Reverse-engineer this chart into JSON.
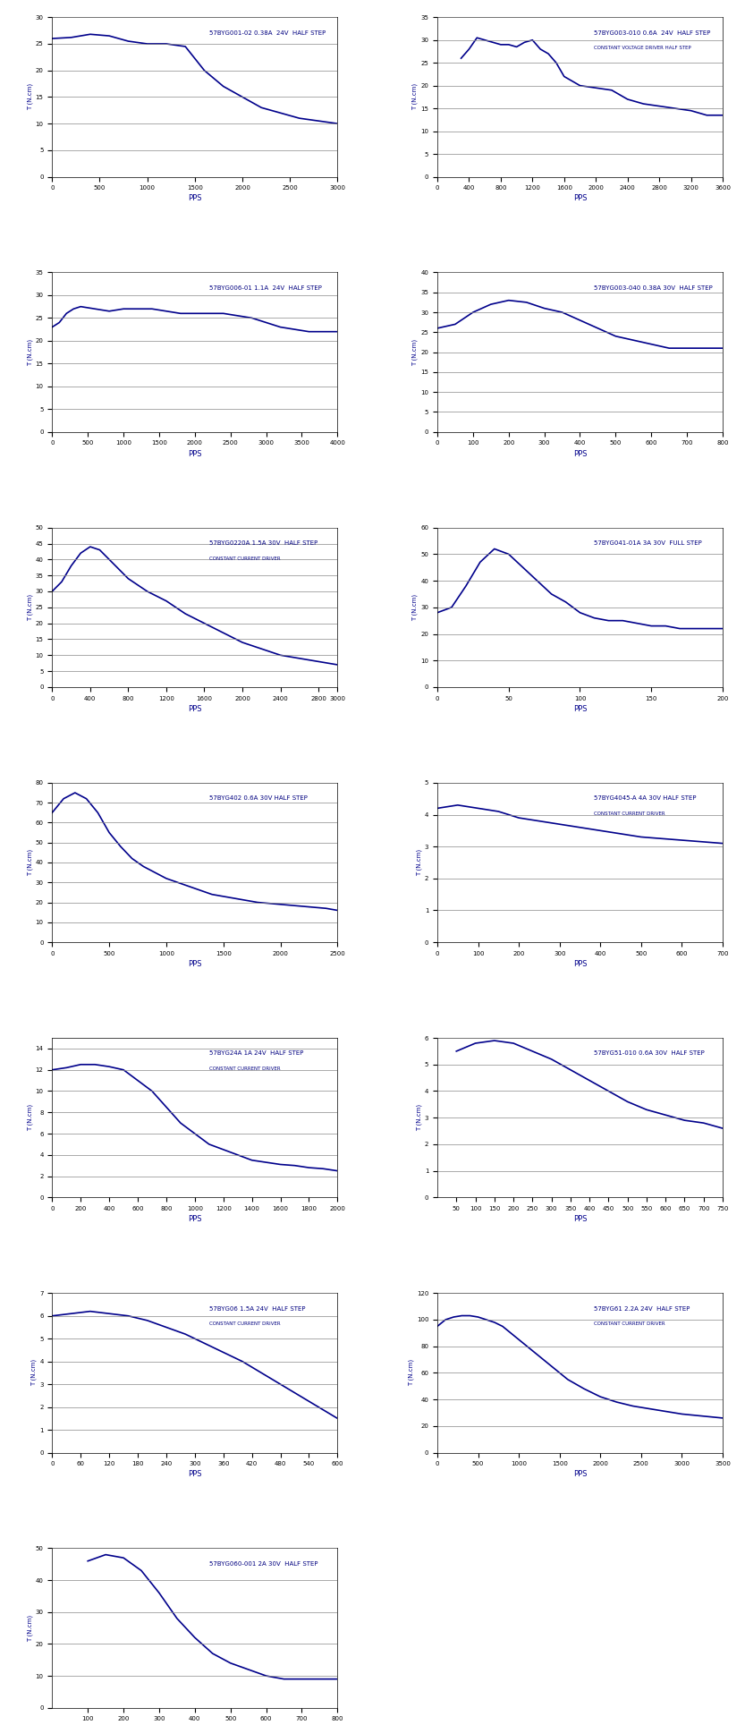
{
  "charts": [
    {
      "title": "57BYG001-02 0.38A  24V  HALF STEP",
      "subtitle": "",
      "ylim": [
        0,
        30
      ],
      "yticks": [
        0,
        5,
        10,
        15,
        20,
        25,
        30
      ],
      "xlim": [
        0,
        3000
      ],
      "xticks": [
        0,
        500,
        1000,
        1500,
        2000,
        2500,
        3000
      ],
      "curve": [
        [
          0,
          26
        ],
        [
          200,
          26.2
        ],
        [
          400,
          26.8
        ],
        [
          600,
          26.5
        ],
        [
          800,
          25.5
        ],
        [
          1000,
          25
        ],
        [
          1200,
          25
        ],
        [
          1400,
          24.5
        ],
        [
          1600,
          20
        ],
        [
          1800,
          17
        ],
        [
          2000,
          15
        ],
        [
          2200,
          13
        ],
        [
          2400,
          12
        ],
        [
          2600,
          11
        ],
        [
          2800,
          10.5
        ],
        [
          3000,
          10
        ]
      ]
    },
    {
      "title": "57BYG003-010 0.6A  24V  HALF STEP",
      "subtitle": "CONSTANT VOLTAGE DRIVER HALF STEP",
      "ylim": [
        0,
        35
      ],
      "yticks": [
        0,
        5,
        10,
        15,
        20,
        25,
        30,
        35
      ],
      "xlim": [
        0,
        3600
      ],
      "xticks": [
        0,
        400,
        800,
        1200,
        1600,
        2000,
        2400,
        2800,
        3200,
        3600
      ],
      "curve": [
        [
          300,
          26
        ],
        [
          400,
          28
        ],
        [
          500,
          30.5
        ],
        [
          600,
          30
        ],
        [
          700,
          29.5
        ],
        [
          800,
          29
        ],
        [
          900,
          29
        ],
        [
          1000,
          28.5
        ],
        [
          1100,
          29.5
        ],
        [
          1200,
          30
        ],
        [
          1300,
          28
        ],
        [
          1400,
          27
        ],
        [
          1500,
          25
        ],
        [
          1600,
          22
        ],
        [
          1800,
          20
        ],
        [
          2000,
          19.5
        ],
        [
          2200,
          19
        ],
        [
          2400,
          17
        ],
        [
          2600,
          16
        ],
        [
          2800,
          15.5
        ],
        [
          3000,
          15
        ],
        [
          3200,
          14.5
        ],
        [
          3400,
          13.5
        ],
        [
          3600,
          13.5
        ]
      ]
    },
    {
      "title": "57BYG006-01 1.1A  24V  HALF STEP",
      "subtitle": "",
      "ylim": [
        0,
        35
      ],
      "yticks": [
        0,
        5,
        10,
        15,
        20,
        25,
        30,
        35
      ],
      "xlim": [
        0,
        4000
      ],
      "xticks": [
        0,
        500,
        1000,
        1500,
        2000,
        2500,
        3000,
        3500,
        4000
      ],
      "curve": [
        [
          0,
          23
        ],
        [
          100,
          24
        ],
        [
          200,
          26
        ],
        [
          300,
          27
        ],
        [
          400,
          27.5
        ],
        [
          600,
          27
        ],
        [
          800,
          26.5
        ],
        [
          1000,
          27
        ],
        [
          1200,
          27
        ],
        [
          1400,
          27
        ],
        [
          1600,
          26.5
        ],
        [
          1800,
          26
        ],
        [
          2000,
          26
        ],
        [
          2200,
          26
        ],
        [
          2400,
          26
        ],
        [
          2600,
          25.5
        ],
        [
          2800,
          25
        ],
        [
          3000,
          24
        ],
        [
          3200,
          23
        ],
        [
          3400,
          22.5
        ],
        [
          3600,
          22
        ],
        [
          4000,
          22
        ]
      ]
    },
    {
      "title": "57BYG003-040 0.38A 30V  HALF STEP",
      "subtitle": "",
      "ylim": [
        0,
        40
      ],
      "yticks": [
        0,
        5,
        10,
        15,
        20,
        25,
        30,
        35,
        40
      ],
      "xlim": [
        0,
        800
      ],
      "xticks": [
        0,
        100,
        200,
        300,
        400,
        500,
        600,
        700,
        800
      ],
      "curve": [
        [
          0,
          26
        ],
        [
          50,
          27
        ],
        [
          100,
          30
        ],
        [
          150,
          32
        ],
        [
          200,
          33
        ],
        [
          250,
          32.5
        ],
        [
          300,
          31
        ],
        [
          350,
          30
        ],
        [
          400,
          28
        ],
        [
          450,
          26
        ],
        [
          500,
          24
        ],
        [
          550,
          23
        ],
        [
          600,
          22
        ],
        [
          650,
          21
        ],
        [
          700,
          21
        ],
        [
          750,
          21
        ],
        [
          800,
          21
        ]
      ]
    },
    {
      "title": "57BYG0220A 1.5A 30V  HALF STEP",
      "subtitle": "CONSTANT CURRENT DRIVER",
      "ylim": [
        0,
        50
      ],
      "yticks": [
        0,
        5,
        10,
        15,
        20,
        25,
        30,
        35,
        40,
        45,
        50
      ],
      "xlim": [
        0,
        3000
      ],
      "xticks": [
        0,
        400,
        800,
        1200,
        1600,
        2000,
        2400,
        2800,
        3000
      ],
      "curve": [
        [
          0,
          30
        ],
        [
          100,
          33
        ],
        [
          200,
          38
        ],
        [
          300,
          42
        ],
        [
          400,
          44
        ],
        [
          500,
          43
        ],
        [
          600,
          40
        ],
        [
          700,
          37
        ],
        [
          800,
          34
        ],
        [
          900,
          32
        ],
        [
          1000,
          30
        ],
        [
          1200,
          27
        ],
        [
          1400,
          23
        ],
        [
          1600,
          20
        ],
        [
          1800,
          17
        ],
        [
          2000,
          14
        ],
        [
          2200,
          12
        ],
        [
          2400,
          10
        ],
        [
          2600,
          9
        ],
        [
          2800,
          8
        ],
        [
          3000,
          7
        ]
      ]
    },
    {
      "title": "57BYG041-01A 3A 30V  FULL STEP",
      "subtitle": "",
      "ylim": [
        0,
        60
      ],
      "yticks": [
        0,
        10,
        20,
        30,
        40,
        50,
        60
      ],
      "xlim": [
        0,
        200
      ],
      "xticks": [
        0,
        50,
        100,
        150,
        200
      ],
      "curve": [
        [
          0,
          28
        ],
        [
          10,
          30
        ],
        [
          20,
          38
        ],
        [
          30,
          47
        ],
        [
          40,
          52
        ],
        [
          50,
          50
        ],
        [
          60,
          45
        ],
        [
          70,
          40
        ],
        [
          80,
          35
        ],
        [
          90,
          32
        ],
        [
          100,
          28
        ],
        [
          110,
          26
        ],
        [
          120,
          25
        ],
        [
          130,
          25
        ],
        [
          140,
          24
        ],
        [
          150,
          23
        ],
        [
          160,
          23
        ],
        [
          170,
          22
        ],
        [
          180,
          22
        ],
        [
          190,
          22
        ],
        [
          200,
          22
        ]
      ]
    },
    {
      "title": "57BYG402 0.6A 30V HALF STEP",
      "subtitle": "",
      "ylim": [
        0,
        80
      ],
      "yticks": [
        0,
        10,
        20,
        30,
        40,
        50,
        60,
        70,
        80
      ],
      "xlim": [
        0,
        2500
      ],
      "xticks": [
        0,
        500,
        1000,
        1500,
        2000,
        2500
      ],
      "curve": [
        [
          0,
          65
        ],
        [
          100,
          72
        ],
        [
          200,
          75
        ],
        [
          300,
          72
        ],
        [
          400,
          65
        ],
        [
          500,
          55
        ],
        [
          600,
          48
        ],
        [
          700,
          42
        ],
        [
          800,
          38
        ],
        [
          900,
          35
        ],
        [
          1000,
          32
        ],
        [
          1200,
          28
        ],
        [
          1400,
          24
        ],
        [
          1600,
          22
        ],
        [
          1800,
          20
        ],
        [
          2000,
          19
        ],
        [
          2200,
          18
        ],
        [
          2400,
          17
        ],
        [
          2500,
          16
        ]
      ]
    },
    {
      "title": "57BYG4045-A 4A 30V HALF STEP",
      "subtitle": "CONSTANT CURRENT DRIVER",
      "ylim": [
        0,
        5
      ],
      "yticks": [
        0,
        1,
        2,
        3,
        4,
        5
      ],
      "xlim": [
        0,
        700
      ],
      "xticks": [
        0,
        100,
        200,
        300,
        400,
        500,
        600,
        700
      ],
      "curve": [
        [
          0,
          4.2
        ],
        [
          50,
          4.3
        ],
        [
          100,
          4.2
        ],
        [
          150,
          4.1
        ],
        [
          200,
          3.9
        ],
        [
          250,
          3.8
        ],
        [
          300,
          3.7
        ],
        [
          350,
          3.6
        ],
        [
          400,
          3.5
        ],
        [
          450,
          3.4
        ],
        [
          500,
          3.3
        ],
        [
          550,
          3.25
        ],
        [
          600,
          3.2
        ],
        [
          650,
          3.15
        ],
        [
          700,
          3.1
        ]
      ]
    },
    {
      "title": "57BYG24A 1A 24V  HALF STEP",
      "subtitle": "CONSTANT CURRENT DRIVER",
      "ylim": [
        0,
        15
      ],
      "yticks": [
        0,
        2,
        4,
        6,
        8,
        10,
        12,
        14
      ],
      "xlim": [
        0,
        2000
      ],
      "xticks": [
        0,
        200,
        400,
        600,
        800,
        1000,
        1200,
        1400,
        1600,
        1800,
        2000
      ],
      "curve": [
        [
          0,
          12
        ],
        [
          100,
          12.2
        ],
        [
          200,
          12.5
        ],
        [
          300,
          12.5
        ],
        [
          400,
          12.3
        ],
        [
          500,
          12
        ],
        [
          600,
          11
        ],
        [
          700,
          10
        ],
        [
          800,
          8.5
        ],
        [
          900,
          7
        ],
        [
          1000,
          6
        ],
        [
          1100,
          5
        ],
        [
          1200,
          4.5
        ],
        [
          1300,
          4
        ],
        [
          1400,
          3.5
        ],
        [
          1500,
          3.3
        ],
        [
          1600,
          3.1
        ],
        [
          1700,
          3
        ],
        [
          1800,
          2.8
        ],
        [
          1900,
          2.7
        ],
        [
          2000,
          2.5
        ]
      ]
    },
    {
      "title": "57BYG51-010 0.6A 30V  HALF STEP",
      "subtitle": "",
      "ylim": [
        0,
        6
      ],
      "yticks": [
        0,
        1,
        2,
        3,
        4,
        5,
        6
      ],
      "xlim": [
        0,
        750
      ],
      "xticks": [
        50,
        100,
        150,
        200,
        250,
        300,
        350,
        400,
        450,
        500,
        550,
        600,
        650,
        700,
        750
      ],
      "curve": [
        [
          50,
          5.5
        ],
        [
          100,
          5.8
        ],
        [
          150,
          5.9
        ],
        [
          200,
          5.8
        ],
        [
          250,
          5.5
        ],
        [
          300,
          5.2
        ],
        [
          350,
          4.8
        ],
        [
          400,
          4.4
        ],
        [
          450,
          4
        ],
        [
          500,
          3.6
        ],
        [
          550,
          3.3
        ],
        [
          600,
          3.1
        ],
        [
          650,
          2.9
        ],
        [
          700,
          2.8
        ],
        [
          750,
          2.6
        ]
      ]
    },
    {
      "title": "57BYG06 1.5A 24V  HALF STEP",
      "subtitle": "CONSTANT CURRENT DRIVER",
      "ylim": [
        0,
        7
      ],
      "yticks": [
        0,
        1,
        2,
        3,
        4,
        5,
        6,
        7
      ],
      "xlim": [
        0,
        600
      ],
      "xticks": [
        0,
        60,
        120,
        180,
        240,
        300,
        360,
        420,
        480,
        540,
        600
      ],
      "curve": [
        [
          0,
          6
        ],
        [
          40,
          6.1
        ],
        [
          80,
          6.2
        ],
        [
          120,
          6.1
        ],
        [
          160,
          6
        ],
        [
          200,
          5.8
        ],
        [
          240,
          5.5
        ],
        [
          280,
          5.2
        ],
        [
          320,
          4.8
        ],
        [
          360,
          4.4
        ],
        [
          400,
          4
        ],
        [
          440,
          3.5
        ],
        [
          480,
          3
        ],
        [
          520,
          2.5
        ],
        [
          560,
          2
        ],
        [
          600,
          1.5
        ]
      ]
    },
    {
      "title": "57BYG61 2.2A 24V  HALF STEP",
      "subtitle": "CONSTANT CURRENT DRIVER",
      "ylim": [
        0,
        120
      ],
      "yticks": [
        0,
        20,
        40,
        60,
        80,
        100,
        120
      ],
      "xlim": [
        0,
        3500
      ],
      "xticks": [
        0,
        500,
        1000,
        1500,
        2000,
        2500,
        3000,
        3500
      ],
      "curve": [
        [
          0,
          95
        ],
        [
          100,
          100
        ],
        [
          200,
          102
        ],
        [
          300,
          103
        ],
        [
          400,
          103
        ],
        [
          500,
          102
        ],
        [
          600,
          100
        ],
        [
          700,
          98
        ],
        [
          800,
          95
        ],
        [
          900,
          90
        ],
        [
          1000,
          85
        ],
        [
          1200,
          75
        ],
        [
          1400,
          65
        ],
        [
          1600,
          55
        ],
        [
          1800,
          48
        ],
        [
          2000,
          42
        ],
        [
          2200,
          38
        ],
        [
          2400,
          35
        ],
        [
          2600,
          33
        ],
        [
          2800,
          31
        ],
        [
          3000,
          29
        ],
        [
          3500,
          26
        ]
      ]
    },
    {
      "title": "57BYG060-001 2A 30V  HALF STEP",
      "subtitle": "",
      "ylim": [
        0,
        50
      ],
      "yticks": [
        0,
        10,
        20,
        30,
        40,
        50
      ],
      "xlim": [
        0,
        800
      ],
      "xticks": [
        100,
        200,
        300,
        400,
        500,
        600,
        700,
        800
      ],
      "curve": [
        [
          100,
          46
        ],
        [
          150,
          48
        ],
        [
          200,
          47
        ],
        [
          250,
          43
        ],
        [
          300,
          36
        ],
        [
          350,
          28
        ],
        [
          400,
          22
        ],
        [
          450,
          17
        ],
        [
          500,
          14
        ],
        [
          550,
          12
        ],
        [
          600,
          10
        ],
        [
          650,
          9
        ],
        [
          700,
          9
        ],
        [
          750,
          9
        ],
        [
          800,
          9
        ]
      ]
    }
  ],
  "ylabel": "T (N.cm)",
  "xlabel": "PPS",
  "line_color": "#00008B",
  "bg_color": "#ffffff",
  "grid_color": "#888888",
  "text_color": "#00008B",
  "title_color": "#000080"
}
